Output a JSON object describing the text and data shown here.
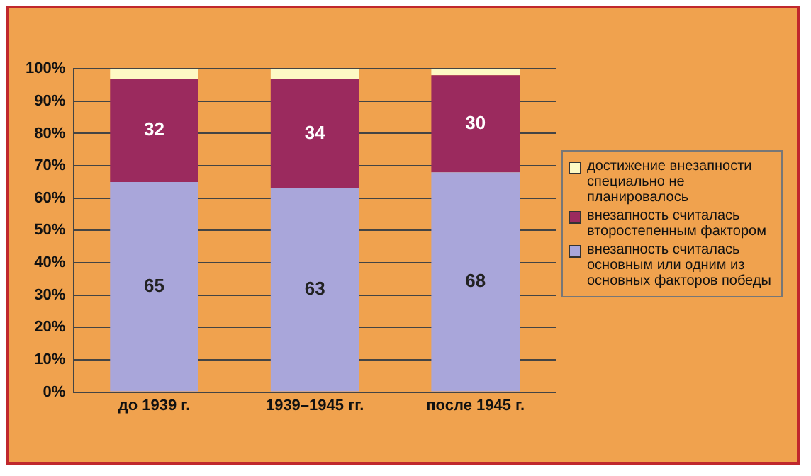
{
  "chart_data": {
    "type": "bar",
    "stacked": true,
    "categories": [
      "до 1939 г.",
      "1939–1945 гг.",
      "после 1945 г."
    ],
    "series": [
      {
        "name": "внезапность считалась основным или одним из основных факторов победы",
        "color": "#a9a6da",
        "values": [
          65,
          63,
          68
        ],
        "value_labels": [
          "65",
          "63",
          "68"
        ]
      },
      {
        "name": "внезапность считалась второстепенным фактором",
        "color": "#9b2a5e",
        "values": [
          32,
          34,
          30
        ],
        "value_labels": [
          "32",
          "34",
          "30"
        ]
      },
      {
        "name": "достижение внезапности специально не планировалось",
        "color": "#fdf9c4",
        "values": [
          3,
          3,
          2
        ]
      }
    ],
    "ylim": [
      0,
      100
    ],
    "yticks": [
      {
        "value": 0,
        "label": "0%"
      },
      {
        "value": 10,
        "label": "10%"
      },
      {
        "value": 20,
        "label": "20%"
      },
      {
        "value": 30,
        "label": "30%"
      },
      {
        "value": 40,
        "label": "40%"
      },
      {
        "value": 50,
        "label": "50%"
      },
      {
        "value": 60,
        "label": "60%"
      },
      {
        "value": 70,
        "label": "70%"
      },
      {
        "value": 80,
        "label": "80%"
      },
      {
        "value": 90,
        "label": "90%"
      },
      {
        "value": 100,
        "label": "100%"
      }
    ],
    "grid": "y",
    "legend": "right"
  }
}
